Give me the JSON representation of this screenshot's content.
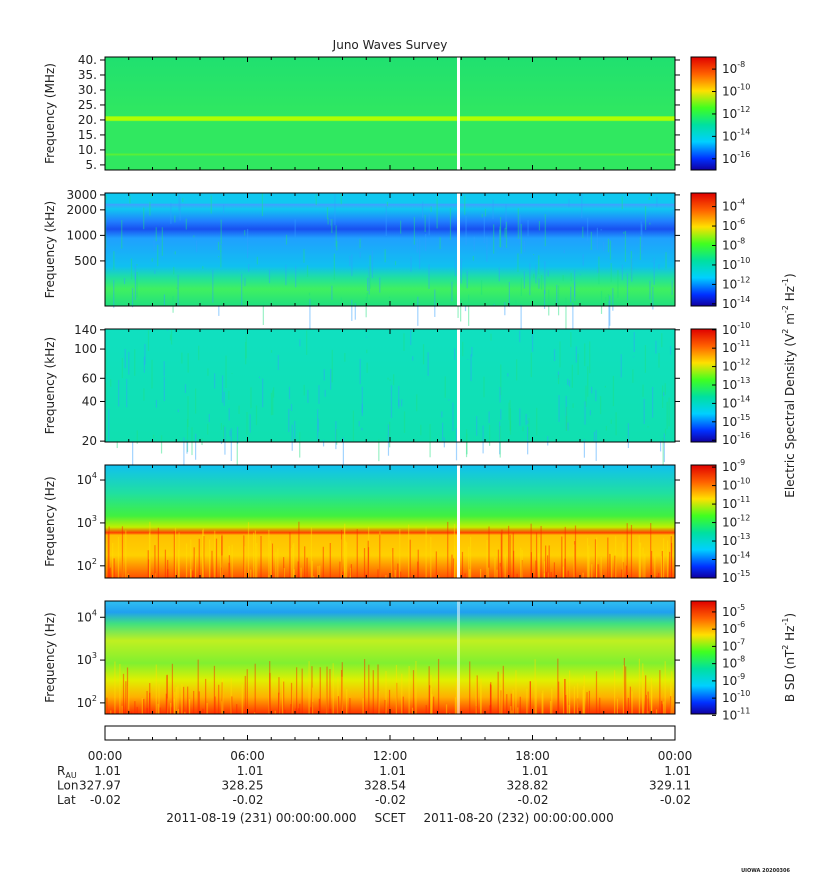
{
  "title": "Juno Waves Survey",
  "chart_data": [
    {
      "type": "heatmap",
      "ylabel": "Frequency (MHz)",
      "ylim": [
        3.3,
        41
      ],
      "log_y": false,
      "yticks": [
        {
          "value": 5,
          "label": "5."
        },
        {
          "value": 10,
          "label": "10."
        },
        {
          "value": 15,
          "label": "15."
        },
        {
          "value": 20,
          "label": "20."
        },
        {
          "value": 25,
          "label": "25."
        },
        {
          "value": 30,
          "label": "30."
        },
        {
          "value": 35,
          "label": "35."
        },
        {
          "value": 40,
          "label": "40."
        }
      ],
      "colorbar": {
        "log": true,
        "clim": [
          1e-17,
          1.2e-07
        ],
        "ticks": [
          {
            "value": 1e-08,
            "label": "10^-8"
          },
          {
            "value": 1e-10,
            "label": "10^-10"
          },
          {
            "value": 1e-12,
            "label": "10^-12"
          },
          {
            "value": 1e-14,
            "label": "10^-14"
          },
          {
            "value": 1e-16,
            "label": "10^-16"
          }
        ]
      }
    },
    {
      "type": "heatmap",
      "ylabel": "Frequency (kHz)",
      "ylim": [
        147,
        3160
      ],
      "log_y": true,
      "yticks": [
        500,
        1000,
        2000,
        3000
      ],
      "colorbar": {
        "log": true,
        "clim": [
          6e-15,
          0.0025
        ],
        "ticks": [
          {
            "value": 0.0001,
            "label": "10^-4"
          },
          {
            "value": 1e-06,
            "label": "10^-6"
          },
          {
            "value": 1e-08,
            "label": "10^-8"
          },
          {
            "value": 1e-10,
            "label": "10^-10"
          },
          {
            "value": 1e-12,
            "label": "10^-12"
          },
          {
            "value": 1e-14,
            "label": "10^-14"
          }
        ]
      }
    },
    {
      "type": "heatmap",
      "ylabel": "Frequency (kHz)",
      "ylim": [
        19.7,
        142
      ],
      "log_y": true,
      "yticks": [
        20,
        40,
        60,
        100,
        140
      ],
      "colorbar": {
        "log": true,
        "clim": [
          8e-17,
          1.1e-10
        ],
        "label": "Electric Spectral Density (V^2 m^-2 Hz^-1)",
        "ticks": [
          {
            "value": 1e-10,
            "label": "10^-10"
          },
          {
            "value": 1e-11,
            "label": "10^-11"
          },
          {
            "value": 1e-12,
            "label": "10^-12"
          },
          {
            "value": 1e-13,
            "label": "10^-13"
          },
          {
            "value": 1e-14,
            "label": "10^-14"
          },
          {
            "value": 1e-15,
            "label": "10^-15"
          },
          {
            "value": 1e-16,
            "label": "10^-16"
          }
        ]
      }
    },
    {
      "type": "heatmap",
      "ylabel": "Frequency (Hz)",
      "ylim": [
        52,
        22400
      ],
      "log_y": true,
      "yticks": [
        {
          "value": 100,
          "label": "10^2"
        },
        {
          "value": 1000,
          "label": "10^3"
        },
        {
          "value": 10000,
          "label": "10^4"
        }
      ],
      "colorbar": {
        "log": true,
        "clim": [
          1e-15,
          1.3e-09
        ],
        "ticks": [
          {
            "value": 1e-09,
            "label": "10^-9"
          },
          {
            "value": 1e-10,
            "label": "10^-10"
          },
          {
            "value": 1e-11,
            "label": "10^-11"
          },
          {
            "value": 1e-12,
            "label": "10^-12"
          },
          {
            "value": 1e-13,
            "label": "10^-13"
          },
          {
            "value": 1e-14,
            "label": "10^-14"
          },
          {
            "value": 1e-15,
            "label": "10^-15"
          }
        ]
      }
    },
    {
      "type": "heatmap",
      "ylabel": "Frequency (Hz)",
      "ylim": [
        55,
        24000
      ],
      "log_y": true,
      "yticks": [
        {
          "value": 100,
          "label": "10^2"
        },
        {
          "value": 1000,
          "label": "10^3"
        },
        {
          "value": 10000,
          "label": "10^4"
        }
      ],
      "colorbar": {
        "log": true,
        "clim": [
          1.2e-11,
          4.3e-05
        ],
        "label": "B SD (nT^2 Hz^-1)",
        "ticks": [
          {
            "value": 1e-05,
            "label": "10^-5"
          },
          {
            "value": 1e-06,
            "label": "10^-6"
          },
          {
            "value": 1e-07,
            "label": "10^-7"
          },
          {
            "value": 1e-08,
            "label": "10^-8"
          },
          {
            "value": 1e-09,
            "label": "10^-9"
          },
          {
            "value": 1e-10,
            "label": "10^-10"
          },
          {
            "value": 1e-11,
            "label": "10^-11"
          }
        ]
      }
    }
  ],
  "time_axis": {
    "categories": [
      "00:00",
      "06:00",
      "12:00",
      "18:00",
      "00:00"
    ],
    "rows": [
      {
        "name": "R_AU",
        "values": [
          1.01,
          1.01,
          1.01,
          1.01,
          1.01
        ]
      },
      {
        "name": "Lon",
        "values": [
          327.97,
          328.25,
          328.54,
          328.82,
          329.11
        ]
      },
      {
        "name": "Lat",
        "values": [
          -0.02,
          -0.02,
          -0.02,
          -0.02,
          -0.02
        ]
      }
    ]
  },
  "footer": {
    "start": "2011-08-19 (231) 00:00:00.000",
    "frame": "SCET",
    "end": "2011-08-20 (232) 00:00:00.000"
  },
  "stamp": "UIOWA 20200306"
}
